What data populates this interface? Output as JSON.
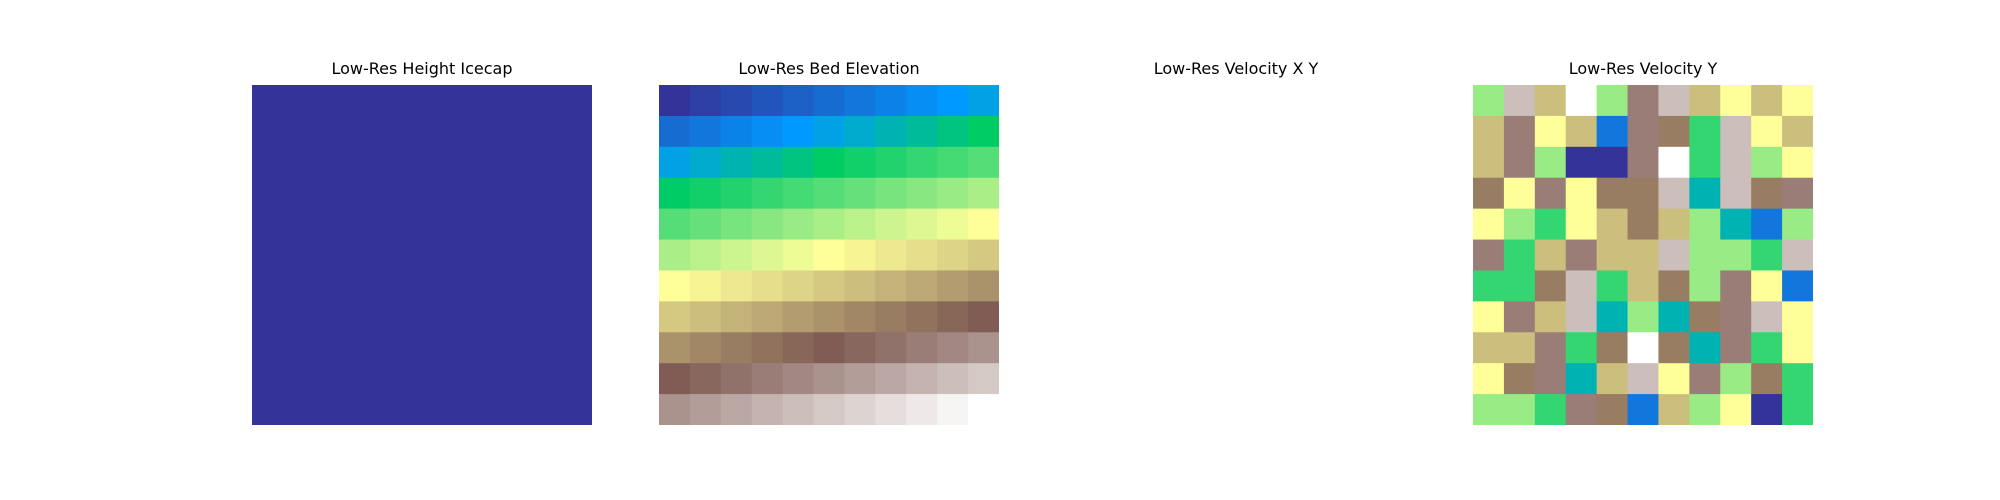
{
  "chart_data": [
    {
      "type": "heatmap",
      "title": "Low-Res Height Icecap",
      "colormap": "terrain",
      "rows": 11,
      "cols": 11,
      "values": [
        [
          0.0,
          0.0,
          0.0,
          0.0,
          0.0,
          0.0,
          0.0,
          0.0,
          0.0,
          0.0,
          0.0
        ],
        [
          0.0,
          0.0,
          0.0,
          0.0,
          0.0,
          0.0,
          0.0,
          0.0,
          0.0,
          0.0,
          0.0
        ],
        [
          0.0,
          0.0,
          0.0,
          0.0,
          0.0,
          0.0,
          0.0,
          0.0,
          0.0,
          0.0,
          0.0
        ],
        [
          0.0,
          0.0,
          0.0,
          0.0,
          0.0,
          0.0,
          0.0,
          0.0,
          0.0,
          0.0,
          0.0
        ],
        [
          0.0,
          0.0,
          0.0,
          0.0,
          0.0,
          0.0,
          0.0,
          0.0,
          0.0,
          0.0,
          0.0
        ],
        [
          0.0,
          0.0,
          0.0,
          0.0,
          0.0,
          0.0,
          0.0,
          0.0,
          0.0,
          0.0,
          0.0
        ],
        [
          0.0,
          0.0,
          0.0,
          0.0,
          0.0,
          0.0,
          0.0,
          0.0,
          0.0,
          0.0,
          0.0
        ],
        [
          0.0,
          0.0,
          0.0,
          0.0,
          0.0,
          0.0,
          0.0,
          0.0,
          0.0,
          0.0,
          0.0
        ],
        [
          0.0,
          0.0,
          0.0,
          0.0,
          0.0,
          0.0,
          0.0,
          0.0,
          0.0,
          0.0,
          0.0
        ],
        [
          0.0,
          0.0,
          0.0,
          0.0,
          0.0,
          0.0,
          0.0,
          0.0,
          0.0,
          0.0,
          0.0
        ],
        [
          0.0,
          0.0,
          0.0,
          0.0,
          0.0,
          0.0,
          0.0,
          0.0,
          0.0,
          0.0,
          0.0
        ]
      ]
    },
    {
      "type": "heatmap",
      "title": "Low-Res Bed Elevation",
      "colormap": "terrain",
      "rows": 11,
      "cols": 11,
      "values": [
        [
          0.0,
          0.02,
          0.04,
          0.06,
          0.08,
          0.1,
          0.12,
          0.14,
          0.16,
          0.18,
          0.2
        ],
        [
          0.1,
          0.12,
          0.14,
          0.16,
          0.18,
          0.2,
          0.22,
          0.24,
          0.26,
          0.28,
          0.3
        ],
        [
          0.2,
          0.22,
          0.24,
          0.26,
          0.28,
          0.3,
          0.32,
          0.34,
          0.36,
          0.38,
          0.4
        ],
        [
          0.3,
          0.32,
          0.34,
          0.36,
          0.38,
          0.4,
          0.42,
          0.44,
          0.46,
          0.48,
          0.5
        ],
        [
          0.4,
          0.42,
          0.44,
          0.46,
          0.48,
          0.5,
          0.52,
          0.54,
          0.56,
          0.58,
          0.6
        ],
        [
          0.5,
          0.52,
          0.54,
          0.56,
          0.58,
          0.6,
          0.62,
          0.64,
          0.66,
          0.68,
          0.7
        ],
        [
          0.6,
          0.62,
          0.64,
          0.66,
          0.68,
          0.7,
          0.72,
          0.74,
          0.76,
          0.78,
          0.8
        ],
        [
          0.7,
          0.72,
          0.74,
          0.76,
          0.78,
          0.8,
          0.82,
          0.84,
          0.86,
          0.88,
          0.9
        ],
        [
          0.8,
          0.82,
          0.84,
          0.86,
          0.88,
          0.9,
          0.92,
          0.94,
          0.96,
          0.98,
          1.0
        ],
        [
          0.9,
          0.92,
          0.94,
          0.96,
          0.98,
          1.0,
          1.02,
          1.04,
          1.06,
          1.08,
          1.1
        ],
        [
          1.0,
          1.02,
          1.04,
          1.06,
          1.08,
          1.1,
          1.12,
          1.14,
          1.16,
          1.18,
          1.2
        ]
      ]
    },
    {
      "type": "heatmap",
      "title": "Low-Res Velocity X Y",
      "colormap": "terrain",
      "rows": 0,
      "cols": 0,
      "values": []
    },
    {
      "type": "heatmap",
      "title": "Low-Res Velocity Y",
      "colormap": "terrain",
      "rows": 11,
      "cols": 11,
      "values": [
        [
          0.4,
          0.9,
          0.6,
          1.0,
          0.4,
          0.8,
          0.9,
          0.6,
          0.5,
          0.6,
          0.5
        ],
        [
          0.6,
          0.8,
          0.5,
          0.6,
          0.1,
          0.8,
          0.7,
          0.3,
          0.9,
          0.5,
          0.6
        ],
        [
          0.6,
          0.8,
          0.4,
          0.0,
          0.0,
          0.8,
          1.0,
          0.3,
          0.9,
          0.4,
          0.5
        ],
        [
          0.7,
          0.5,
          0.8,
          0.5,
          0.7,
          0.7,
          0.9,
          0.2,
          0.9,
          0.7,
          0.8
        ],
        [
          0.5,
          0.4,
          0.3,
          0.5,
          0.6,
          0.7,
          0.6,
          0.4,
          0.2,
          0.1,
          0.4
        ],
        [
          0.8,
          0.3,
          0.6,
          0.8,
          0.6,
          0.6,
          0.9,
          0.4,
          0.4,
          0.3,
          0.9
        ],
        [
          0.3,
          0.3,
          0.7,
          0.9,
          0.3,
          0.6,
          0.7,
          0.4,
          0.8,
          0.5,
          0.1
        ],
        [
          0.5,
          0.8,
          0.6,
          0.9,
          0.2,
          0.4,
          0.2,
          0.7,
          0.8,
          0.9,
          0.5
        ],
        [
          0.6,
          0.6,
          0.8,
          0.3,
          0.7,
          1.0,
          0.7,
          0.2,
          0.8,
          0.3,
          0.5
        ],
        [
          0.5,
          0.7,
          0.8,
          0.2,
          0.6,
          0.9,
          0.5,
          0.8,
          0.4,
          0.7,
          0.3
        ],
        [
          0.4,
          0.4,
          0.3,
          0.8,
          0.7,
          0.1,
          0.6,
          0.4,
          0.5,
          0.0,
          0.3
        ]
      ]
    }
  ]
}
